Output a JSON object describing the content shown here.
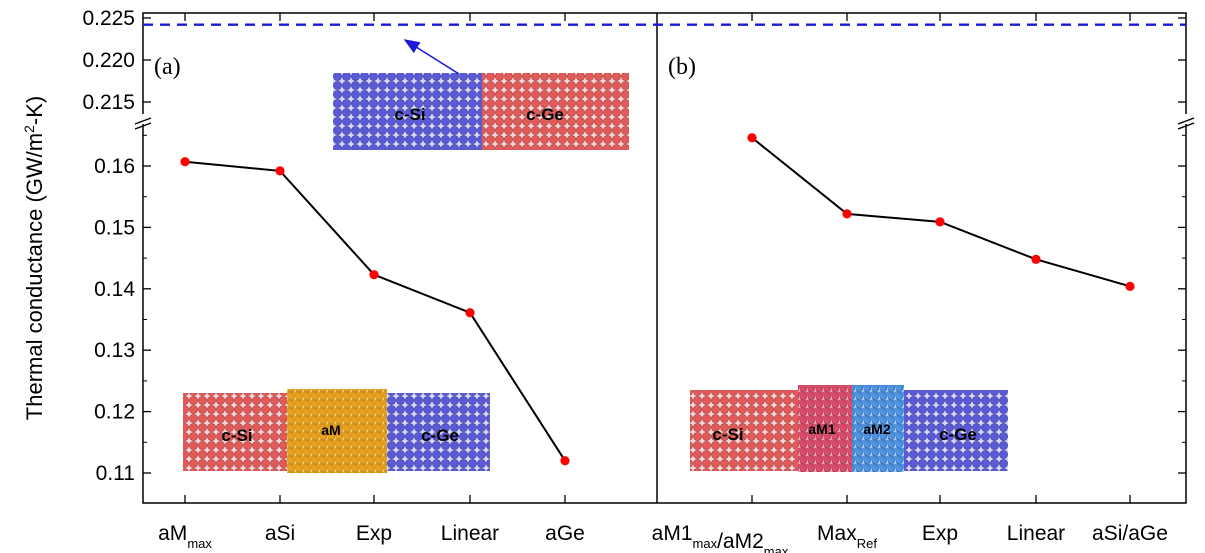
{
  "chart_data": {
    "type": "line",
    "ylabel": {
      "main": "Thermal conductance (GW/m",
      "sup": "2",
      "tail": "-K)"
    },
    "y_ticks_lower": [
      "0.11",
      "0.12",
      "0.13",
      "0.14",
      "0.15",
      "0.16"
    ],
    "y_ticks_upper": [
      "0.215",
      "0.220",
      "0.225"
    ],
    "ylim_lower": [
      0.107,
      0.168
    ],
    "ylim_upper": [
      0.2135,
      0.2258
    ],
    "axis_break": true,
    "reference": {
      "value": 0.2242,
      "style": "dashed",
      "color": "#1a1ad6"
    },
    "line_color": "#000000",
    "marker_color": "#ff0000",
    "panels": [
      {
        "label": "(a)",
        "categories": [
          {
            "main": "aM",
            "sub": "max"
          },
          {
            "main": "aSi"
          },
          {
            "main": "Exp"
          },
          {
            "main": "Linear"
          },
          {
            "main": "aGe"
          }
        ],
        "values": [
          0.1607,
          0.1592,
          0.1423,
          0.1361,
          0.112
        ],
        "inset_top": {
          "left": "c-Si",
          "right": "c-Ge"
        },
        "inset_bottom": {
          "left": "c-Si",
          "mid": "aM",
          "right": "c-Ge"
        }
      },
      {
        "label": "(b)",
        "categories": [
          {
            "parts": [
              {
                "main": "aM1",
                "sub": "max"
              },
              {
                "main": "/aM2",
                "sub": "max"
              }
            ]
          },
          {
            "main": "Max",
            "sub": "Ref"
          },
          {
            "main": "Exp"
          },
          {
            "main": "Linear"
          },
          {
            "main": "aSi/aGe"
          }
        ],
        "values": [
          0.1646,
          0.1522,
          0.1509,
          0.1448,
          0.1404
        ],
        "inset_bottom": {
          "left": "c-Si",
          "mid1": "aM1",
          "mid2": "aM2",
          "right": "c-Ge"
        }
      }
    ]
  },
  "colors": {
    "si_atoms": "#e05a5a",
    "ge_atoms": "#5a5ad6",
    "am_atoms": "#e8a020",
    "am1_atoms": "#d94c6a",
    "am2_atoms": "#4f92e0",
    "arrow": "#1a1ad6"
  }
}
